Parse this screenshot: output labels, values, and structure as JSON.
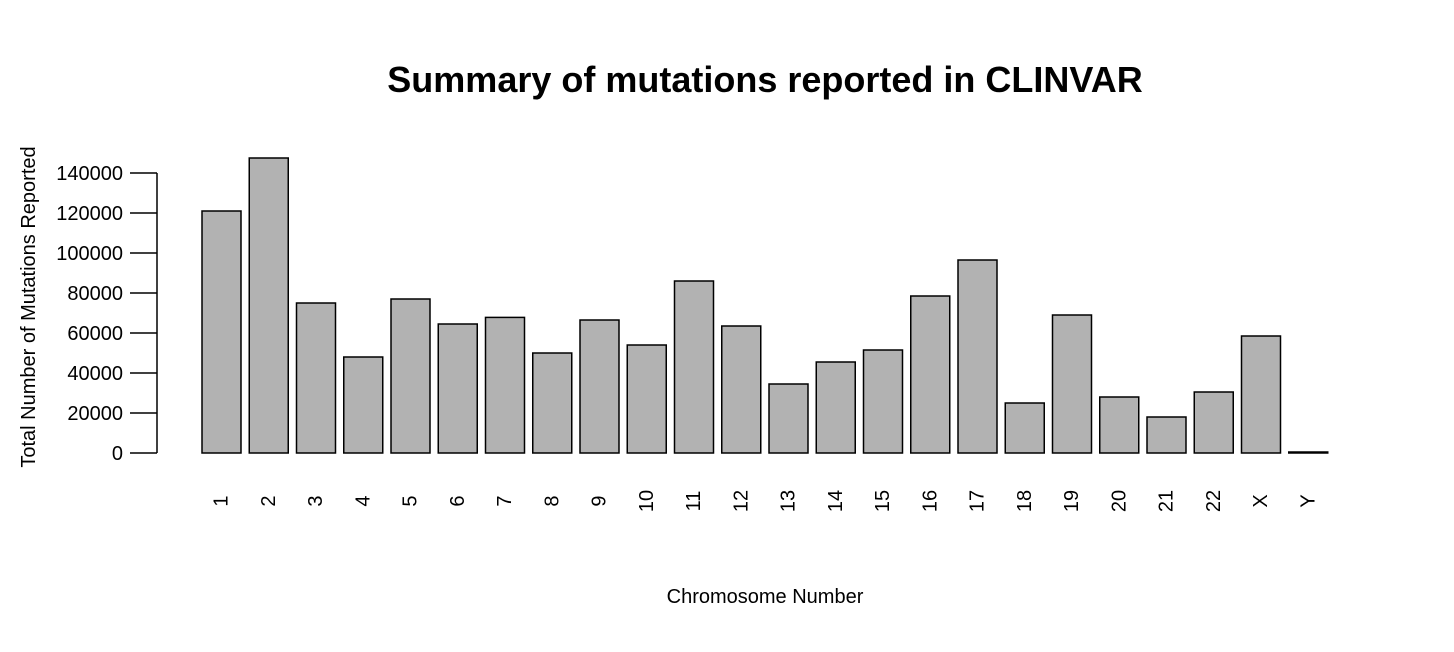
{
  "chart_data": {
    "type": "bar",
    "title": "Summary of mutations reported in CLINVAR",
    "xlabel": "Chromosome Number",
    "ylabel": "Total Number of Mutations Reported",
    "categories": [
      "1",
      "2",
      "3",
      "4",
      "5",
      "6",
      "7",
      "8",
      "9",
      "10",
      "11",
      "12",
      "13",
      "14",
      "15",
      "16",
      "17",
      "18",
      "19",
      "20",
      "21",
      "22",
      "X",
      "Y"
    ],
    "values": [
      121000,
      147500,
      75000,
      48000,
      77000,
      64500,
      67800,
      50000,
      66500,
      54000,
      86000,
      63500,
      34500,
      45500,
      51500,
      78500,
      96500,
      25000,
      69000,
      28000,
      18000,
      30500,
      58500,
      500
    ],
    "yticks": [
      0,
      20000,
      40000,
      60000,
      80000,
      100000,
      120000,
      140000
    ],
    "ytick_labels": [
      "0",
      "20000",
      "40000",
      "60000",
      "80000",
      "100000",
      "120000",
      "140000"
    ],
    "ylim": [
      0,
      140000
    ],
    "grid": false,
    "legend": "none",
    "x_tick_label_rotation": "vertical",
    "colors": {
      "bar_fill": "#b2b2b2",
      "bar_stroke": "#000000",
      "axis": "#000000",
      "background": "#ffffff"
    }
  }
}
